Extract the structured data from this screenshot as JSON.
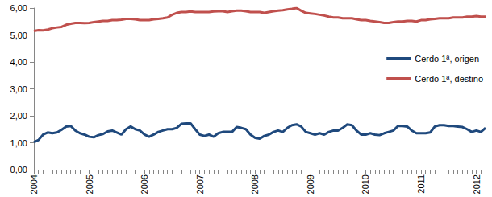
{
  "chart_data": {
    "type": "line",
    "categories": [
      "2004",
      null,
      null,
      null,
      null,
      null,
      null,
      null,
      null,
      null,
      null,
      null,
      "2005",
      null,
      null,
      null,
      null,
      null,
      null,
      null,
      null,
      null,
      null,
      null,
      "2006",
      null,
      null,
      null,
      null,
      null,
      null,
      null,
      null,
      null,
      null,
      null,
      "2007",
      null,
      null,
      null,
      null,
      null,
      null,
      null,
      null,
      null,
      null,
      null,
      "2008",
      null,
      null,
      null,
      null,
      null,
      null,
      null,
      null,
      null,
      null,
      null,
      "2009",
      null,
      null,
      null,
      null,
      null,
      null,
      null,
      null,
      null,
      null,
      null,
      "2010",
      null,
      null,
      null,
      null,
      null,
      null,
      null,
      null,
      null,
      null,
      null,
      "2011",
      null,
      null,
      null,
      null,
      null,
      null,
      null,
      null,
      null,
      null,
      null,
      "2012",
      null,
      null
    ],
    "series": [
      {
        "name": "Cerdo 1ª, origen",
        "color": "#1f497d",
        "values": [
          1.02,
          1.1,
          1.3,
          1.38,
          1.35,
          1.38,
          1.48,
          1.6,
          1.62,
          1.45,
          1.35,
          1.3,
          1.22,
          1.2,
          1.28,
          1.32,
          1.42,
          1.45,
          1.38,
          1.3,
          1.5,
          1.6,
          1.5,
          1.45,
          1.3,
          1.22,
          1.3,
          1.4,
          1.45,
          1.5,
          1.5,
          1.55,
          1.7,
          1.72,
          1.72,
          1.5,
          1.3,
          1.25,
          1.3,
          1.22,
          1.35,
          1.4,
          1.4,
          1.4,
          1.58,
          1.55,
          1.5,
          1.3,
          1.18,
          1.15,
          1.25,
          1.3,
          1.4,
          1.45,
          1.4,
          1.55,
          1.65,
          1.68,
          1.6,
          1.4,
          1.35,
          1.3,
          1.35,
          1.3,
          1.4,
          1.45,
          1.45,
          1.55,
          1.68,
          1.65,
          1.45,
          1.3,
          1.3,
          1.35,
          1.3,
          1.28,
          1.35,
          1.4,
          1.45,
          1.62,
          1.62,
          1.6,
          1.45,
          1.35,
          1.35,
          1.35,
          1.38,
          1.6,
          1.65,
          1.65,
          1.62,
          1.62,
          1.6,
          1.58,
          1.5,
          1.4,
          1.45,
          1.4,
          1.55
        ]
      },
      {
        "name": "Cerdo 1ª, destino",
        "color": "#c0504d",
        "values": [
          5.15,
          5.18,
          5.17,
          5.2,
          5.25,
          5.28,
          5.3,
          5.38,
          5.42,
          5.45,
          5.45,
          5.44,
          5.45,
          5.48,
          5.5,
          5.52,
          5.52,
          5.55,
          5.55,
          5.57,
          5.6,
          5.6,
          5.58,
          5.55,
          5.55,
          5.55,
          5.58,
          5.6,
          5.62,
          5.65,
          5.75,
          5.82,
          5.85,
          5.85,
          5.87,
          5.85,
          5.85,
          5.85,
          5.85,
          5.87,
          5.88,
          5.88,
          5.85,
          5.88,
          5.9,
          5.9,
          5.88,
          5.85,
          5.85,
          5.85,
          5.82,
          5.85,
          5.88,
          5.9,
          5.92,
          5.95,
          5.97,
          6.0,
          5.9,
          5.82,
          5.8,
          5.78,
          5.75,
          5.72,
          5.68,
          5.65,
          5.65,
          5.62,
          5.62,
          5.62,
          5.58,
          5.55,
          5.55,
          5.52,
          5.5,
          5.48,
          5.45,
          5.45,
          5.48,
          5.5,
          5.5,
          5.52,
          5.52,
          5.5,
          5.55,
          5.55,
          5.58,
          5.6,
          5.62,
          5.62,
          5.62,
          5.65,
          5.65,
          5.65,
          5.68,
          5.68,
          5.7,
          5.68,
          5.68
        ]
      }
    ],
    "ylim": [
      0,
      6
    ],
    "yticks": [
      {
        "value": 0,
        "label": "0,00"
      },
      {
        "value": 1,
        "label": "1,00"
      },
      {
        "value": 2,
        "label": "2,00"
      },
      {
        "value": 3,
        "label": "3,00"
      },
      {
        "value": 4,
        "label": "4,00"
      },
      {
        "value": 5,
        "label": "5,00"
      },
      {
        "value": 6,
        "label": "6,00"
      }
    ],
    "grid": false,
    "legend": "right"
  }
}
